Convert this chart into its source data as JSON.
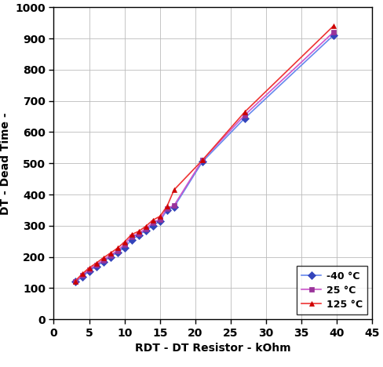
{
  "title": "",
  "xlabel": "RDT - DT Resistor - kOhm",
  "ylabel": "DT - Dead Time -",
  "xlim": [
    0,
    45
  ],
  "ylim": [
    0,
    1000
  ],
  "xticks": [
    0,
    5,
    10,
    15,
    20,
    25,
    30,
    35,
    40,
    45
  ],
  "yticks": [
    0,
    100,
    200,
    300,
    400,
    500,
    600,
    700,
    800,
    900,
    1000
  ],
  "series": [
    {
      "label": "-40 °C",
      "line_color": "#6688EE",
      "marker": "D",
      "marker_face": "#3344BB",
      "marker_edge": "#3344BB",
      "x": [
        3.0,
        4.0,
        5.0,
        6.0,
        7.0,
        8.0,
        9.0,
        10.0,
        11.0,
        12.0,
        13.0,
        14.0,
        15.0,
        16.0,
        17.0,
        21.0,
        27.0,
        39.5
      ],
      "y": [
        120,
        135,
        155,
        170,
        185,
        200,
        215,
        230,
        255,
        270,
        285,
        300,
        315,
        350,
        360,
        505,
        645,
        910
      ]
    },
    {
      "label": "25 °C",
      "line_color": "#CC55CC",
      "marker": "s",
      "marker_face": "#993399",
      "marker_edge": "#993399",
      "x": [
        3.0,
        4.0,
        5.0,
        6.0,
        7.0,
        8.0,
        9.0,
        10.0,
        11.0,
        12.0,
        13.0,
        14.0,
        15.0,
        16.0,
        17.0,
        21.0,
        27.0,
        39.5
      ],
      "y": [
        120,
        140,
        160,
        175,
        190,
        205,
        220,
        240,
        265,
        275,
        290,
        310,
        320,
        355,
        365,
        510,
        655,
        920
      ]
    },
    {
      "label": "125 °C",
      "line_color": "#EE3333",
      "marker": "^",
      "marker_face": "#CC0000",
      "marker_edge": "#CC0000",
      "x": [
        3.0,
        4.0,
        5.0,
        6.0,
        7.0,
        8.0,
        9.0,
        10.0,
        11.0,
        12.0,
        13.0,
        14.0,
        15.0,
        16.0,
        17.0,
        21.0,
        27.0,
        39.5
      ],
      "y": [
        122,
        145,
        165,
        180,
        197,
        212,
        228,
        248,
        272,
        282,
        298,
        318,
        330,
        362,
        415,
        510,
        665,
        940
      ]
    }
  ],
  "legend_loc": "lower right",
  "grid_color": "#BBBBBB",
  "background_color": "#FFFFFF",
  "xlabel_fontsize": 10,
  "ylabel_fontsize": 10,
  "tick_fontsize": 10,
  "legend_fontsize": 9,
  "linewidth": 1.2,
  "markersize": 5
}
